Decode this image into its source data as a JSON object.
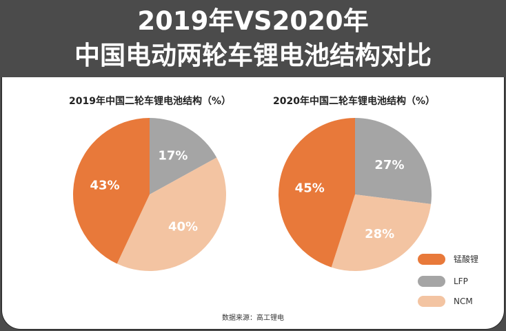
{
  "header": {
    "line1": "2019年VS2020年",
    "line2": "中国电动两轮车锂电池结构对比"
  },
  "colors": {
    "锰酸锂": "#E8793A",
    "LFP": "#A5A5A5",
    "NCM": "#F3C4A2"
  },
  "chart_data": [
    {
      "type": "pie",
      "title": "2019年中国二轮车锂电池结构（%）",
      "labels": [
        "LFP",
        "NCM",
        "锰酸锂"
      ],
      "values": [
        17,
        40,
        43
      ],
      "value_labels": [
        "17%",
        "40%",
        "43%"
      ]
    },
    {
      "type": "pie",
      "title": "2020年中国二轮车锂电池结构（%）",
      "labels": [
        "LFP",
        "NCM",
        "锰酸锂"
      ],
      "values": [
        27,
        28,
        45
      ],
      "value_labels": [
        "27%",
        "28%",
        "45%"
      ]
    }
  ],
  "legend": [
    "锰酸锂",
    "LFP",
    "NCM"
  ],
  "source": "数据来源：高工锂电"
}
